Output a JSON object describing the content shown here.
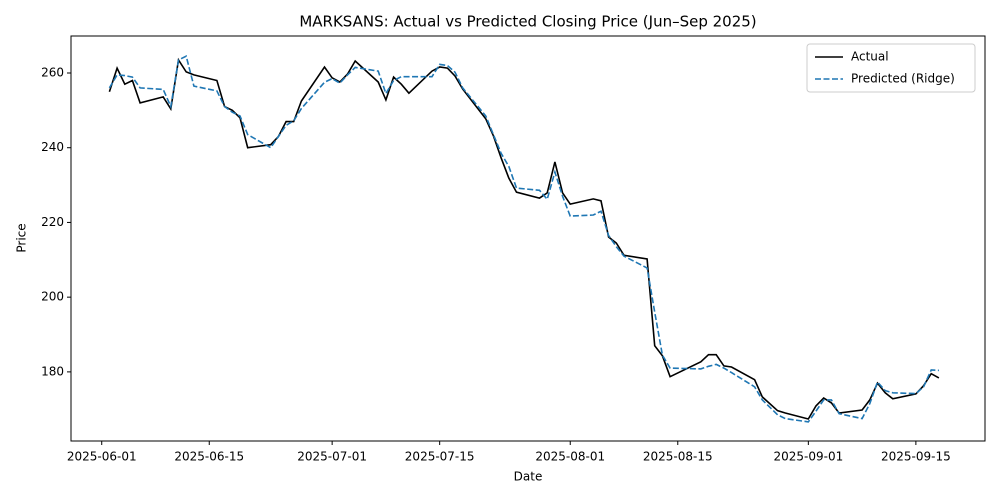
{
  "chart_data": {
    "type": "line",
    "title": "MARKSANS: Actual vs Predicted Closing Price (Jun–Sep 2025)",
    "x_label": "Date",
    "y_label": "Price",
    "x": [
      "2025-06-02",
      "2025-06-03",
      "2025-06-04",
      "2025-06-05",
      "2025-06-06",
      "2025-06-09",
      "2025-06-10",
      "2025-06-11",
      "2025-06-12",
      "2025-06-13",
      "2025-06-16",
      "2025-06-17",
      "2025-06-18",
      "2025-06-19",
      "2025-06-20",
      "2025-06-23",
      "2025-06-24",
      "2025-06-25",
      "2025-06-26",
      "2025-06-27",
      "2025-06-30",
      "2025-07-01",
      "2025-07-02",
      "2025-07-03",
      "2025-07-04",
      "2025-07-07",
      "2025-07-08",
      "2025-07-09",
      "2025-07-10",
      "2025-07-11",
      "2025-07-14",
      "2025-07-15",
      "2025-07-16",
      "2025-07-17",
      "2025-07-18",
      "2025-07-21",
      "2025-07-22",
      "2025-07-23",
      "2025-07-24",
      "2025-07-25",
      "2025-07-28",
      "2025-07-29",
      "2025-07-30",
      "2025-07-31",
      "2025-08-01",
      "2025-08-04",
      "2025-08-05",
      "2025-08-06",
      "2025-08-07",
      "2025-08-08",
      "2025-08-11",
      "2025-08-12",
      "2025-08-13",
      "2025-08-14",
      "2025-08-18",
      "2025-08-19",
      "2025-08-20",
      "2025-08-21",
      "2025-08-22",
      "2025-08-25",
      "2025-08-26",
      "2025-08-28",
      "2025-08-29",
      "2025-09-01",
      "2025-09-02",
      "2025-09-03",
      "2025-09-04",
      "2025-09-05",
      "2025-09-08",
      "2025-09-09",
      "2025-09-10",
      "2025-09-11",
      "2025-09-12",
      "2025-09-15",
      "2025-09-16",
      "2025-09-17",
      "2025-09-18"
    ],
    "series": [
      {
        "name": "Actual",
        "color": "#000000",
        "dash": "solid",
        "values": [
          255,
          261.3,
          257,
          258,
          252,
          253.6,
          250.4,
          263.5,
          260.3,
          259.5,
          258,
          251,
          250,
          248,
          240,
          240.8,
          243,
          247,
          247,
          252.5,
          261.6,
          258.7,
          257.6,
          259.7,
          263.2,
          257.6,
          252.8,
          258.9,
          257,
          254.6,
          260.5,
          261.6,
          261.3,
          259.2,
          255.7,
          247.7,
          243.2,
          237.3,
          231.9,
          228.1,
          226.5,
          227.9,
          236.2,
          227.9,
          224.9,
          226.3,
          225.8,
          216.1,
          214.5,
          211.2,
          210.2,
          187,
          184.3,
          178.7,
          182.7,
          184.6,
          184.6,
          181.6,
          181.3,
          177.9,
          173.3,
          169.6,
          169,
          167.4,
          170.9,
          173,
          171.7,
          169,
          169.8,
          172.5,
          177,
          174.4,
          172.8,
          174.1,
          176.3,
          179.5,
          178.4
        ]
      },
      {
        "name": "Predicted (Ridge)",
        "color": "#1f77b4",
        "dash": "dashed",
        "values": [
          256,
          259.5,
          259.3,
          258.9,
          256,
          255.6,
          251,
          263.5,
          264.5,
          256.5,
          255.2,
          251,
          249.5,
          248.5,
          243.5,
          240,
          243,
          246,
          247.2,
          250.5,
          257.5,
          258.5,
          257.3,
          259.5,
          261.5,
          260.5,
          254.5,
          258,
          259,
          259,
          259,
          262.3,
          262,
          260.2,
          256,
          248.5,
          243.5,
          238.5,
          235,
          229.2,
          228.6,
          226.2,
          233.5,
          227,
          221.7,
          222,
          223,
          216.5,
          213.5,
          211,
          207.8,
          196,
          184.5,
          181,
          180.8,
          181.5,
          182,
          181,
          179.8,
          176,
          172.5,
          168.5,
          167.5,
          166.6,
          169.5,
          172.5,
          172.5,
          168.8,
          167.5,
          171.5,
          177.3,
          175,
          174.4,
          174.2,
          176,
          180.5,
          180.4
        ]
      }
    ],
    "xlim": [
      "2025-05-28",
      "2025-09-24"
    ],
    "xticks": [
      "2025-06-01",
      "2025-06-15",
      "2025-07-01",
      "2025-07-15",
      "2025-08-01",
      "2025-08-15",
      "2025-09-01",
      "2025-09-15"
    ],
    "ylim": [
      161.5,
      269.9
    ],
    "yticks": [
      180,
      200,
      220,
      240,
      260
    ],
    "grid": false,
    "legend": "upper right"
  }
}
